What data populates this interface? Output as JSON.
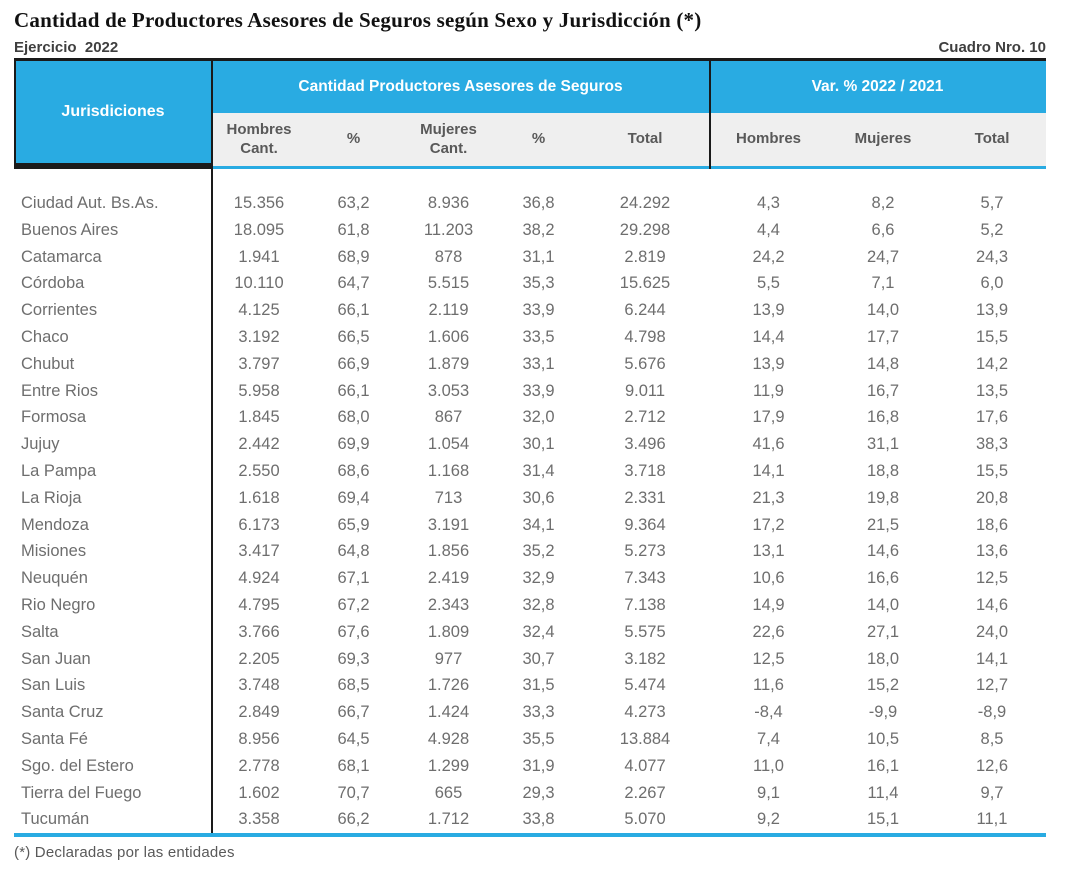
{
  "page": {
    "title": "Cantidad de Productores Asesores de Seguros según Sexo y Jurisdicción (*)",
    "exercise_label": "Ejercicio  2022",
    "table_number_label": "Cuadro Nro. 10",
    "footnote": "(*) Declaradas por las entidades"
  },
  "colors": {
    "accent_cyan": "#29ABE2",
    "subheader_bg": "#EFEFEF",
    "border_black": "#1A1A1A",
    "data_text_gray": "#6E6E6E",
    "subheader_text_gray": "#595959"
  },
  "table": {
    "corner_header": "Jurisdiciones",
    "group1_header": "Cantidad Productores Asesores de Seguros",
    "group2_header": "Var. % 2022 / 2021",
    "subheaders": {
      "hombres_line1": "Hombres",
      "hombres_line2": "Cant.",
      "pct1": "%",
      "mujeres_line1": "Mujeres",
      "mujeres_line2": "Cant.",
      "pct2": "%",
      "total_cant": "Total",
      "var_hombres": "Hombres",
      "var_mujeres": "Mujeres",
      "var_total": "Total"
    },
    "rows": [
      [
        "Ciudad Aut. Bs.As.",
        "15.356",
        "63,2",
        "8.936",
        "36,8",
        "24.292",
        "4,3",
        "8,2",
        "5,7"
      ],
      [
        "Buenos Aires",
        "18.095",
        "61,8",
        "11.203",
        "38,2",
        "29.298",
        "4,4",
        "6,6",
        "5,2"
      ],
      [
        "Catamarca",
        "1.941",
        "68,9",
        "878",
        "31,1",
        "2.819",
        "24,2",
        "24,7",
        "24,3"
      ],
      [
        "Córdoba",
        "10.110",
        "64,7",
        "5.515",
        "35,3",
        "15.625",
        "5,5",
        "7,1",
        "6,0"
      ],
      [
        "Corrientes",
        "4.125",
        "66,1",
        "2.119",
        "33,9",
        "6.244",
        "13,9",
        "14,0",
        "13,9"
      ],
      [
        "Chaco",
        "3.192",
        "66,5",
        "1.606",
        "33,5",
        "4.798",
        "14,4",
        "17,7",
        "15,5"
      ],
      [
        "Chubut",
        "3.797",
        "66,9",
        "1.879",
        "33,1",
        "5.676",
        "13,9",
        "14,8",
        "14,2"
      ],
      [
        "Entre Rios",
        "5.958",
        "66,1",
        "3.053",
        "33,9",
        "9.011",
        "11,9",
        "16,7",
        "13,5"
      ],
      [
        "Formosa",
        "1.845",
        "68,0",
        "867",
        "32,0",
        "2.712",
        "17,9",
        "16,8",
        "17,6"
      ],
      [
        "Jujuy",
        "2.442",
        "69,9",
        "1.054",
        "30,1",
        "3.496",
        "41,6",
        "31,1",
        "38,3"
      ],
      [
        "La Pampa",
        "2.550",
        "68,6",
        "1.168",
        "31,4",
        "3.718",
        "14,1",
        "18,8",
        "15,5"
      ],
      [
        "La Rioja",
        "1.618",
        "69,4",
        "713",
        "30,6",
        "2.331",
        "21,3",
        "19,8",
        "20,8"
      ],
      [
        "Mendoza",
        "6.173",
        "65,9",
        "3.191",
        "34,1",
        "9.364",
        "17,2",
        "21,5",
        "18,6"
      ],
      [
        "Misiones",
        "3.417",
        "64,8",
        "1.856",
        "35,2",
        "5.273",
        "13,1",
        "14,6",
        "13,6"
      ],
      [
        "Neuquén",
        "4.924",
        "67,1",
        "2.419",
        "32,9",
        "7.343",
        "10,6",
        "16,6",
        "12,5"
      ],
      [
        "Rio Negro",
        "4.795",
        "67,2",
        "2.343",
        "32,8",
        "7.138",
        "14,9",
        "14,0",
        "14,6"
      ],
      [
        "Salta",
        "3.766",
        "67,6",
        "1.809",
        "32,4",
        "5.575",
        "22,6",
        "27,1",
        "24,0"
      ],
      [
        "San Juan",
        "2.205",
        "69,3",
        "977",
        "30,7",
        "3.182",
        "12,5",
        "18,0",
        "14,1"
      ],
      [
        "San Luis",
        "3.748",
        "68,5",
        "1.726",
        "31,5",
        "5.474",
        "11,6",
        "15,2",
        "12,7"
      ],
      [
        "Santa Cruz",
        "2.849",
        "66,7",
        "1.424",
        "33,3",
        "4.273",
        "-8,4",
        "-9,9",
        "-8,9"
      ],
      [
        "Santa Fé",
        "8.956",
        "64,5",
        "4.928",
        "35,5",
        "13.884",
        "7,4",
        "10,5",
        "8,5"
      ],
      [
        "Sgo. del Estero",
        "2.778",
        "68,1",
        "1.299",
        "31,9",
        "4.077",
        "11,0",
        "16,1",
        "12,6"
      ],
      [
        "Tierra del Fuego",
        "1.602",
        "70,7",
        "665",
        "29,3",
        "2.267",
        "9,1",
        "11,4",
        "9,7"
      ],
      [
        "Tucumán",
        "3.358",
        "66,2",
        "1.712",
        "33,8",
        "5.070",
        "9,2",
        "15,1",
        "11,1"
      ]
    ]
  }
}
